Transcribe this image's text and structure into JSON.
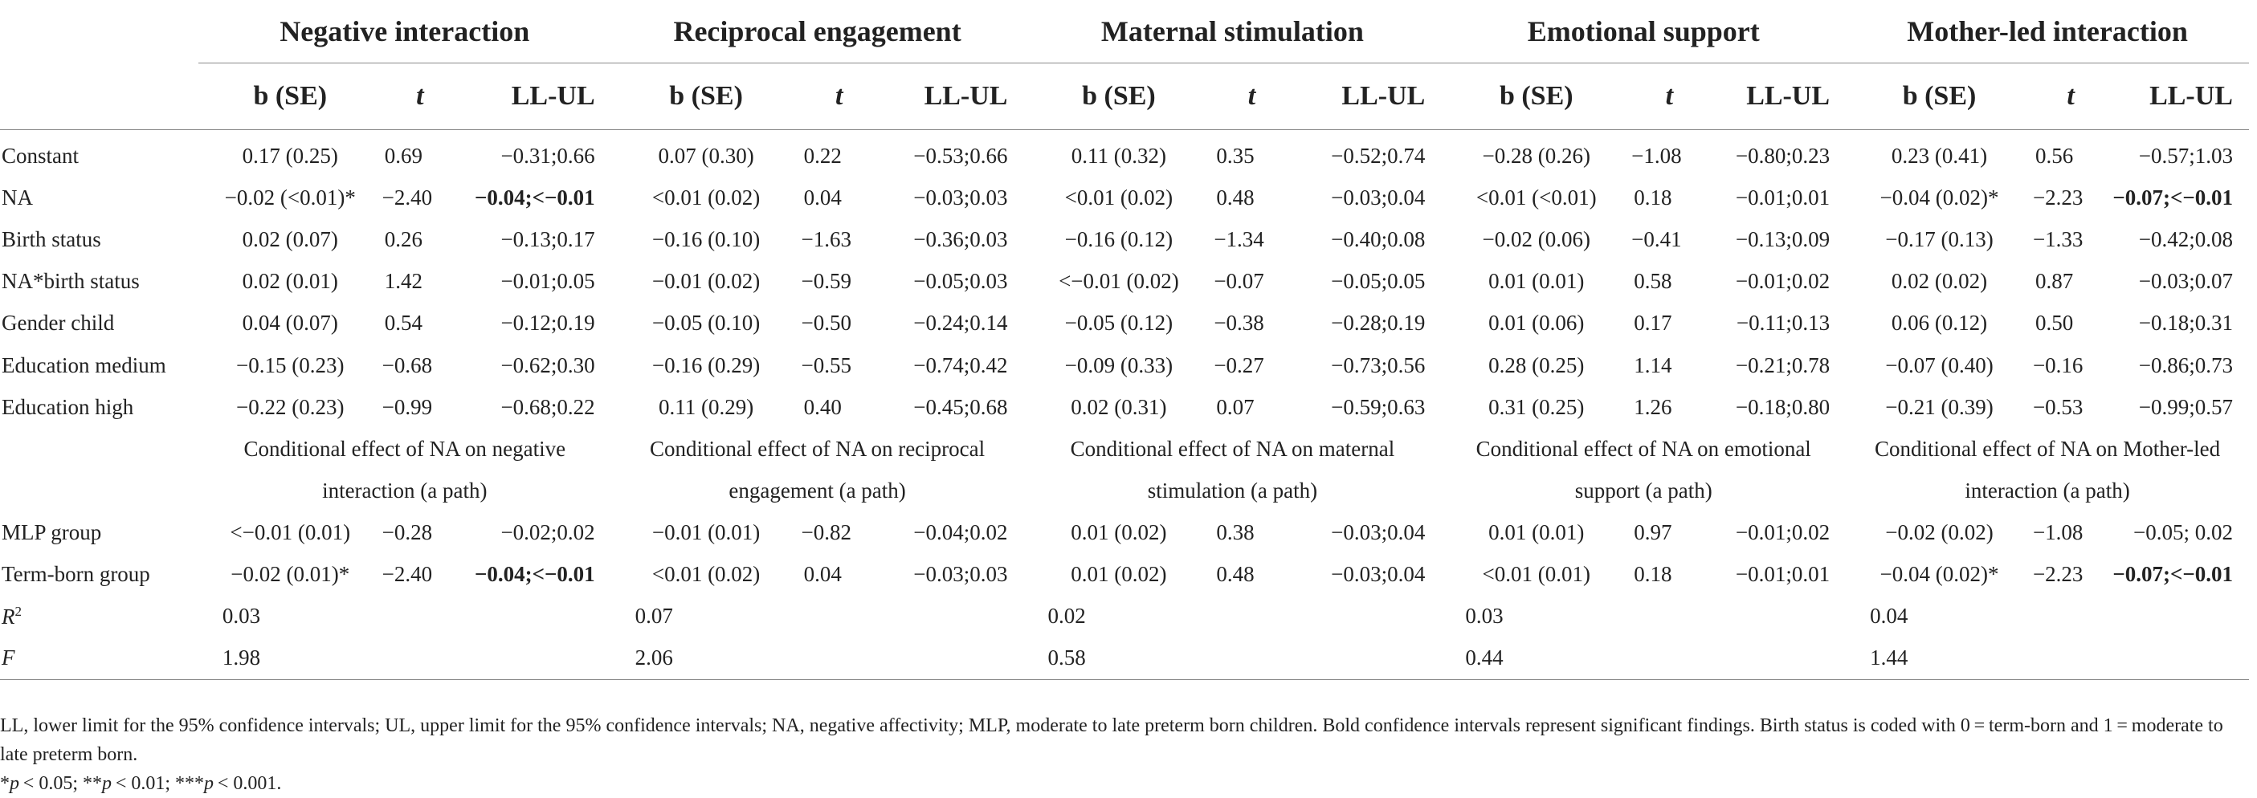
{
  "groups": [
    "Negative interaction",
    "Reciprocal engagement",
    "Maternal stimulation",
    "Emotional support",
    "Mother-led interaction"
  ],
  "subheaders": {
    "b": "b (SE)",
    "t": "t",
    "ll": "LL-UL"
  },
  "rows": [
    {
      "label": "Constant",
      "cells": [
        {
          "b": "0.17 (0.25)",
          "t": "0.69",
          "ll": "−0.31;0.66"
        },
        {
          "b": "0.07 (0.30)",
          "t": "0.22",
          "ll": "−0.53;0.66"
        },
        {
          "b": "0.11 (0.32)",
          "t": "0.35",
          "ll": "−0.52;0.74"
        },
        {
          "b": "−0.28 (0.26)",
          "t": "−1.08",
          "ll": "−0.80;0.23"
        },
        {
          "b": "0.23 (0.41)",
          "t": "0.56",
          "ll": "−0.57;1.03"
        }
      ]
    },
    {
      "label": "NA",
      "cells": [
        {
          "b": "−0.02 (<0.01)*",
          "t": "−2.40",
          "ll": "−0.04;<−0.01",
          "bold": true
        },
        {
          "b": "<0.01 (0.02)",
          "t": "0.04",
          "ll": "−0.03;0.03"
        },
        {
          "b": "<0.01 (0.02)",
          "t": "0.48",
          "ll": "−0.03;0.04"
        },
        {
          "b": "<0.01 (<0.01)",
          "t": "0.18",
          "ll": "−0.01;0.01"
        },
        {
          "b": "−0.04 (0.02)*",
          "t": "−2.23",
          "ll": "−0.07;<−0.01",
          "bold": true
        }
      ]
    },
    {
      "label": "Birth status",
      "cells": [
        {
          "b": "0.02 (0.07)",
          "t": "0.26",
          "ll": "−0.13;0.17"
        },
        {
          "b": "−0.16 (0.10)",
          "t": "−1.63",
          "ll": "−0.36;0.03"
        },
        {
          "b": "−0.16 (0.12)",
          "t": "−1.34",
          "ll": "−0.40;0.08"
        },
        {
          "b": "−0.02 (0.06)",
          "t": "−0.41",
          "ll": "−0.13;0.09"
        },
        {
          "b": "−0.17 (0.13)",
          "t": "−1.33",
          "ll": "−0.42;0.08"
        }
      ]
    },
    {
      "label": "NA*birth status",
      "cells": [
        {
          "b": "0.02 (0.01)",
          "t": "1.42",
          "ll": "−0.01;0.05"
        },
        {
          "b": "−0.01 (0.02)",
          "t": "−0.59",
          "ll": "−0.05;0.03"
        },
        {
          "b": "<−0.01 (0.02)",
          "t": "−0.07",
          "ll": "−0.05;0.05"
        },
        {
          "b": "0.01 (0.01)",
          "t": "0.58",
          "ll": "−0.01;0.02"
        },
        {
          "b": "0.02 (0.02)",
          "t": "0.87",
          "ll": "−0.03;0.07"
        }
      ]
    },
    {
      "label": "Gender child",
      "cells": [
        {
          "b": "0.04 (0.07)",
          "t": "0.54",
          "ll": "−0.12;0.19"
        },
        {
          "b": "−0.05 (0.10)",
          "t": "−0.50",
          "ll": "−0.24;0.14"
        },
        {
          "b": "−0.05 (0.12)",
          "t": "−0.38",
          "ll": "−0.28;0.19"
        },
        {
          "b": "0.01 (0.06)",
          "t": "0.17",
          "ll": "−0.11;0.13"
        },
        {
          "b": "0.06 (0.12)",
          "t": "0.50",
          "ll": "−0.18;0.31"
        }
      ]
    },
    {
      "label": "Education medium",
      "cells": [
        {
          "b": "−0.15 (0.23)",
          "t": "−0.68",
          "ll": "−0.62;0.30"
        },
        {
          "b": "−0.16 (0.29)",
          "t": "−0.55",
          "ll": "−0.74;0.42"
        },
        {
          "b": "−0.09 (0.33)",
          "t": "−0.27",
          "ll": "−0.73;0.56"
        },
        {
          "b": "0.28 (0.25)",
          "t": "1.14",
          "ll": "−0.21;0.78"
        },
        {
          "b": "−0.07 (0.40)",
          "t": "−0.16",
          "ll": "−0.86;0.73"
        }
      ]
    },
    {
      "label": "Education high",
      "cells": [
        {
          "b": "−0.22 (0.23)",
          "t": "−0.99",
          "ll": "−0.68;0.22"
        },
        {
          "b": "0.11 (0.29)",
          "t": "0.40",
          "ll": "−0.45;0.68"
        },
        {
          "b": "0.02 (0.31)",
          "t": "0.07",
          "ll": "−0.59;0.63"
        },
        {
          "b": "0.31 (0.25)",
          "t": "1.26",
          "ll": "−0.18;0.80"
        },
        {
          "b": "−0.21 (0.39)",
          "t": "−0.53",
          "ll": "−0.99;0.57"
        }
      ]
    }
  ],
  "conditional_titles": [
    "Conditional effect of NA on negative interaction (a path)",
    "Conditional effect of NA on reciprocal engagement (a path)",
    "Conditional effect of NA on maternal stimulation (a path)",
    "Conditional effect of NA on emotional support (a path)",
    "Conditional effect of NA on Mother-led interaction (a path)"
  ],
  "conditional_rows": [
    {
      "label": "MLP group",
      "cells": [
        {
          "b": "<−0.01 (0.01)",
          "t": "−0.28",
          "ll": "−0.02;0.02"
        },
        {
          "b": "−0.01 (0.01)",
          "t": "−0.82",
          "ll": "−0.04;0.02"
        },
        {
          "b": "0.01 (0.02)",
          "t": "0.38",
          "ll": "−0.03;0.04"
        },
        {
          "b": "0.01 (0.01)",
          "t": "0.97",
          "ll": "−0.01;0.02"
        },
        {
          "b": "−0.02 (0.02)",
          "t": "−1.08",
          "ll": "−0.05; 0.02"
        }
      ]
    },
    {
      "label": "Term-born group",
      "cells": [
        {
          "b": "−0.02 (0.01)*",
          "t": "−2.40",
          "ll": "−0.04;<−0.01",
          "bold": true
        },
        {
          "b": "<0.01 (0.02)",
          "t": "0.04",
          "ll": "−0.03;0.03"
        },
        {
          "b": "0.01 (0.02)",
          "t": "0.48",
          "ll": "−0.03;0.04"
        },
        {
          "b": "<0.01 (0.01)",
          "t": "0.18",
          "ll": "−0.01;0.01"
        },
        {
          "b": "−0.04 (0.02)*",
          "t": "−2.23",
          "ll": "−0.07;<−0.01",
          "bold": true
        }
      ]
    }
  ],
  "fit_rows": [
    {
      "label": "R",
      "sup": "2",
      "values": [
        "0.03",
        "0.07",
        "0.02",
        "0.03",
        "0.04"
      ]
    },
    {
      "label": "F",
      "sup": "",
      "values": [
        "1.98",
        "2.06",
        "0.58",
        "0.44",
        "1.44"
      ]
    }
  ],
  "notes": {
    "line1": "LL, lower limit for the 95% confidence intervals; UL, upper limit for the 95% confidence intervals; NA, negative affectivity; MLP, moderate to late preterm born children. Bold confidence intervals represent significant findings. Birth status is coded with 0 = term-born and 1 = moderate to late preterm born.",
    "sig": [
      {
        "stars": "*",
        "text": "< 0.05; "
      },
      {
        "stars": "**",
        "text": "< 0.01; "
      },
      {
        "stars": "***",
        "text": "< 0.001."
      }
    ]
  }
}
